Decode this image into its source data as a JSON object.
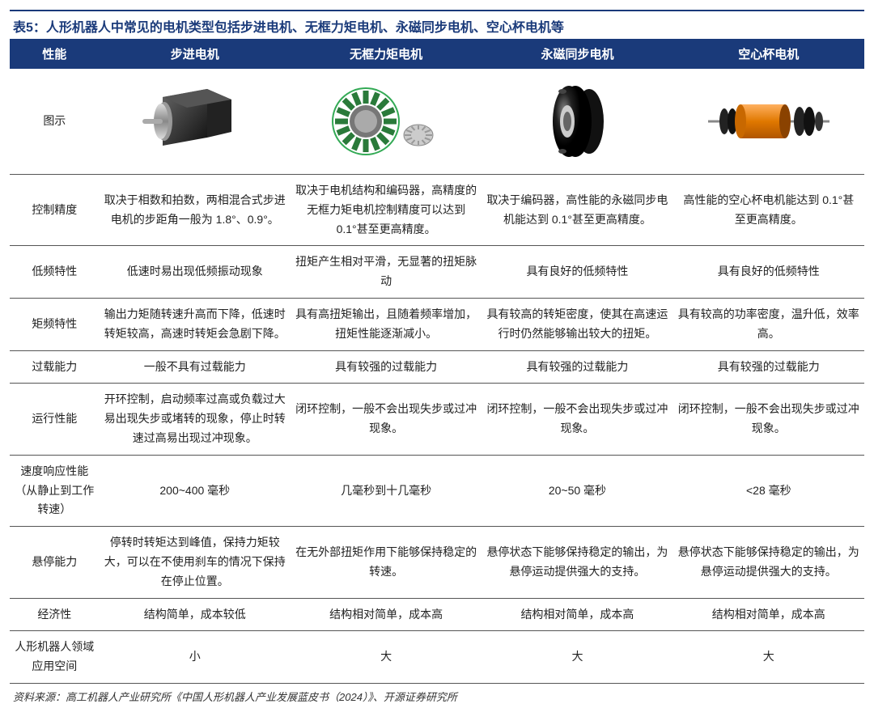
{
  "title": {
    "prefix": "表5：",
    "text": "人形机器人中常见的电机类型包括步进电机、无框力矩电机、永磁同步电机、空心杯电机等"
  },
  "colors": {
    "header_bg": "#1a3a7a",
    "header_fg": "#ffffff",
    "title_color": "#1a3a7a",
    "border": "#555555",
    "body_text": "#222222"
  },
  "columns": [
    "性能",
    "步进电机",
    "无框力矩电机",
    "永磁同步电机",
    "空心杯电机"
  ],
  "rows": [
    {
      "label": "图示",
      "cells": [
        "__IMG1__",
        "__IMG2__",
        "__IMG3__",
        "__IMG4__"
      ]
    },
    {
      "label": "控制精度",
      "cells": [
        "取决于相数和拍数，两相混合式步进电机的步距角一般为 1.8°、0.9°。",
        "取决于电机结构和编码器，高精度的无框力矩电机控制精度可以达到 0.1°甚至更高精度。",
        "取决于编码器，高性能的永磁同步电机能达到 0.1°甚至更高精度。",
        "高性能的空心杯电机能达到 0.1°甚至更高精度。"
      ]
    },
    {
      "label": "低频特性",
      "cells": [
        "低速时易出现低频振动现象",
        "扭矩产生相对平滑，无显著的扭矩脉动",
        "具有良好的低频特性",
        "具有良好的低频特性"
      ]
    },
    {
      "label": "矩频特性",
      "cells": [
        "输出力矩随转速升高而下降，低速时转矩较高，高速时转矩会急剧下降。",
        "具有高扭矩输出，且随着频率增加，扭矩性能逐渐减小。",
        "具有较高的转矩密度，使其在高速运行时仍然能够输出较大的扭矩。",
        "具有较高的功率密度，温升低，效率高。"
      ]
    },
    {
      "label": "过载能力",
      "cells": [
        "一般不具有过载能力",
        "具有较强的过载能力",
        "具有较强的过载能力",
        "具有较强的过载能力"
      ]
    },
    {
      "label": "运行性能",
      "cells": [
        "开环控制，启动频率过高或负载过大易出现失步或堵转的现象，停止时转速过高易出现过冲现象。",
        "闭环控制，一般不会出现失步或过冲现象。",
        "闭环控制，一般不会出现失步或过冲现象。",
        "闭环控制，一般不会出现失步或过冲现象。"
      ]
    },
    {
      "label": "速度响应性能（从静止到工作转速）",
      "cells": [
        "200~400 毫秒",
        "几毫秒到十几毫秒",
        "20~50 毫秒",
        "<28 毫秒"
      ]
    },
    {
      "label": "悬停能力",
      "cells": [
        "停转时转矩达到峰值，保持力矩较大，可以在不使用刹车的情况下保持在停止位置。",
        "在无外部扭矩作用下能够保持稳定的转速。",
        "悬停状态下能够保持稳定的输出，为悬停运动提供强大的支持。",
        "悬停状态下能够保持稳定的输出，为悬停运动提供强大的支持。"
      ]
    },
    {
      "label": "经济性",
      "cells": [
        "结构简单，成本较低",
        "结构相对简单，成本高",
        "结构相对简单，成本高",
        "结构相对简单，成本高"
      ]
    },
    {
      "label": "人形机器人领域应用空间",
      "cells": [
        "小",
        "大",
        "大",
        "大"
      ]
    }
  ],
  "source": "资料来源：高工机器人产业研究所《中国人形机器人产业发展蓝皮书（2024）》、开源证券研究所",
  "icons": {
    "motor1": "stepper-motor-icon",
    "motor2": "frameless-torque-motor-icon",
    "motor3": "pmsm-motor-icon",
    "motor4": "coreless-motor-icon"
  }
}
